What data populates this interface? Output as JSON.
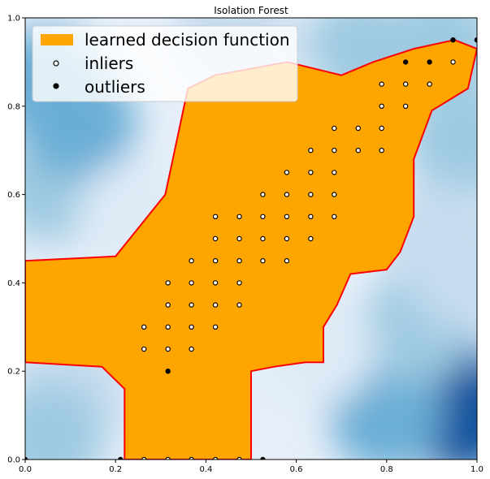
{
  "chart_data": {
    "type": "scatter",
    "title": "Isolation Forest",
    "xlabel": "",
    "ylabel": "",
    "xlim": [
      0,
      1
    ],
    "ylim": [
      0,
      1
    ],
    "x_ticks": [
      "0.0",
      "0.2",
      "0.4",
      "0.6",
      "0.8",
      "1.0"
    ],
    "y_ticks": [
      "0.0",
      "0.2",
      "0.4",
      "0.6",
      "0.8",
      "1.0"
    ],
    "grid": false,
    "legend": {
      "placement": "top-left",
      "entries": [
        {
          "label": "learned decision function",
          "kind": "region",
          "color": "#FFA500"
        },
        {
          "label": "inliers",
          "kind": "marker",
          "fill": "#ffffff",
          "edge": "#000000"
        },
        {
          "label": "outliers",
          "kind": "marker",
          "fill": "#000000",
          "edge": "#000000"
        }
      ]
    },
    "colors": {
      "inlier_region": "#FFA500",
      "boundary": "#FF0000",
      "background_levels": [
        "#08519c",
        "#2171b5",
        "#4292c6",
        "#6baed6",
        "#9ecae1",
        "#c6dbef",
        "#deebf7",
        "#eef4fb"
      ]
    },
    "background_blobs": [
      {
        "x": 0.92,
        "y": 0.18,
        "level": 1
      },
      {
        "x": 0.96,
        "y": 0.1,
        "level": 0
      },
      {
        "x": 0.8,
        "y": 0.1,
        "level": 3
      },
      {
        "x": 0.87,
        "y": 0.3,
        "level": 4
      },
      {
        "x": 0.1,
        "y": 0.15,
        "level": 5
      },
      {
        "x": 0.05,
        "y": 0.05,
        "level": 4
      },
      {
        "x": 0.35,
        "y": 0.08,
        "level": 6
      },
      {
        "x": 0.06,
        "y": 0.62,
        "level": 4
      },
      {
        "x": 0.12,
        "y": 0.76,
        "level": 3
      },
      {
        "x": 0.05,
        "y": 0.85,
        "level": 3
      },
      {
        "x": 0.24,
        "y": 0.55,
        "level": 6
      },
      {
        "x": 0.74,
        "y": 0.92,
        "level": 4
      },
      {
        "x": 0.92,
        "y": 0.94,
        "level": 4
      },
      {
        "x": 0.97,
        "y": 0.72,
        "level": 4
      },
      {
        "x": 0.92,
        "y": 0.5,
        "level": 5
      },
      {
        "x": 0.55,
        "y": 0.8,
        "level": 6
      },
      {
        "x": 0.46,
        "y": 0.96,
        "level": 5
      },
      {
        "x": 0.65,
        "y": 0.25,
        "level": 6
      },
      {
        "x": 0.97,
        "y": 0.42,
        "level": 5
      }
    ],
    "inlier_region_outline": [
      [
        0.22,
        0.0
      ],
      [
        0.22,
        0.16
      ],
      [
        0.17,
        0.21
      ],
      [
        0.0,
        0.22
      ],
      [
        0.0,
        0.45
      ],
      [
        0.2,
        0.46
      ],
      [
        0.31,
        0.6
      ],
      [
        0.36,
        0.84
      ],
      [
        0.42,
        0.87
      ],
      [
        0.58,
        0.9
      ],
      [
        0.7,
        0.87
      ],
      [
        0.77,
        0.9
      ],
      [
        0.86,
        0.93
      ],
      [
        0.95,
        0.95
      ],
      [
        1.0,
        0.93
      ],
      [
        0.98,
        0.84
      ],
      [
        0.9,
        0.79
      ],
      [
        0.86,
        0.68
      ],
      [
        0.86,
        0.55
      ],
      [
        0.83,
        0.47
      ],
      [
        0.8,
        0.43
      ],
      [
        0.72,
        0.42
      ],
      [
        0.69,
        0.35
      ],
      [
        0.66,
        0.3
      ],
      [
        0.66,
        0.22
      ],
      [
        0.62,
        0.22
      ],
      [
        0.55,
        0.21
      ],
      [
        0.5,
        0.2
      ],
      [
        0.5,
        0.0
      ]
    ],
    "series": [
      {
        "name": "inliers",
        "points": [
          [
            0.263,
            0.3
          ],
          [
            0.263,
            0.25
          ],
          [
            0.316,
            0.4
          ],
          [
            0.316,
            0.35
          ],
          [
            0.316,
            0.3
          ],
          [
            0.316,
            0.25
          ],
          [
            0.368,
            0.45
          ],
          [
            0.368,
            0.4
          ],
          [
            0.368,
            0.35
          ],
          [
            0.368,
            0.3
          ],
          [
            0.368,
            0.25
          ],
          [
            0.421,
            0.55
          ],
          [
            0.421,
            0.5
          ],
          [
            0.421,
            0.45
          ],
          [
            0.421,
            0.4
          ],
          [
            0.421,
            0.35
          ],
          [
            0.421,
            0.3
          ],
          [
            0.474,
            0.55
          ],
          [
            0.474,
            0.5
          ],
          [
            0.474,
            0.45
          ],
          [
            0.474,
            0.4
          ],
          [
            0.474,
            0.35
          ],
          [
            0.526,
            0.6
          ],
          [
            0.526,
            0.55
          ],
          [
            0.526,
            0.5
          ],
          [
            0.526,
            0.45
          ],
          [
            0.579,
            0.65
          ],
          [
            0.579,
            0.6
          ],
          [
            0.579,
            0.55
          ],
          [
            0.579,
            0.5
          ],
          [
            0.579,
            0.45
          ],
          [
            0.632,
            0.7
          ],
          [
            0.632,
            0.65
          ],
          [
            0.632,
            0.6
          ],
          [
            0.632,
            0.55
          ],
          [
            0.632,
            0.5
          ],
          [
            0.684,
            0.75
          ],
          [
            0.684,
            0.7
          ],
          [
            0.684,
            0.65
          ],
          [
            0.684,
            0.6
          ],
          [
            0.684,
            0.55
          ],
          [
            0.737,
            0.75
          ],
          [
            0.737,
            0.7
          ],
          [
            0.789,
            0.85
          ],
          [
            0.789,
            0.8
          ],
          [
            0.789,
            0.75
          ],
          [
            0.789,
            0.7
          ],
          [
            0.842,
            0.85
          ],
          [
            0.842,
            0.8
          ],
          [
            0.895,
            0.85
          ],
          [
            0.947,
            0.9
          ],
          [
            0.263,
            0.0
          ],
          [
            0.316,
            0.0
          ],
          [
            0.368,
            0.0
          ],
          [
            0.421,
            0.0
          ],
          [
            0.474,
            0.0
          ],
          [
            1.0,
            0.95
          ]
        ]
      },
      {
        "name": "outliers",
        "points": [
          [
            0.0,
            0.0
          ],
          [
            0.211,
            0.0
          ],
          [
            0.526,
            0.0
          ],
          [
            0.316,
            0.2
          ],
          [
            0.842,
            0.9
          ],
          [
            0.895,
            0.9
          ],
          [
            0.947,
            0.95
          ],
          [
            1.0,
            0.95
          ]
        ]
      }
    ]
  }
}
